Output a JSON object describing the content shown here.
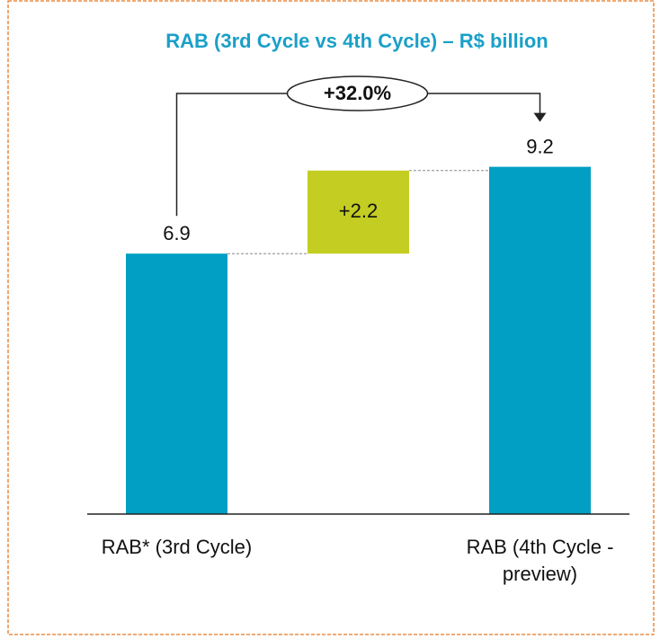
{
  "chart_data": {
    "type": "waterfall",
    "title": "RAB (3rd Cycle vs 4th Cycle) – R$ billion",
    "categories": [
      "RAB* (3rd Cycle)",
      null,
      "RAB (4th Cycle - preview)"
    ],
    "values": [
      6.9,
      2.2,
      9.2
    ],
    "value_labels": [
      "6.9",
      "+2.2",
      "9.2"
    ],
    "colors": [
      "#009fc3",
      "#c3cd22",
      "#009fc3"
    ],
    "annotation": "+32.0%",
    "ylim": [
      0,
      10
    ],
    "grid": false
  }
}
